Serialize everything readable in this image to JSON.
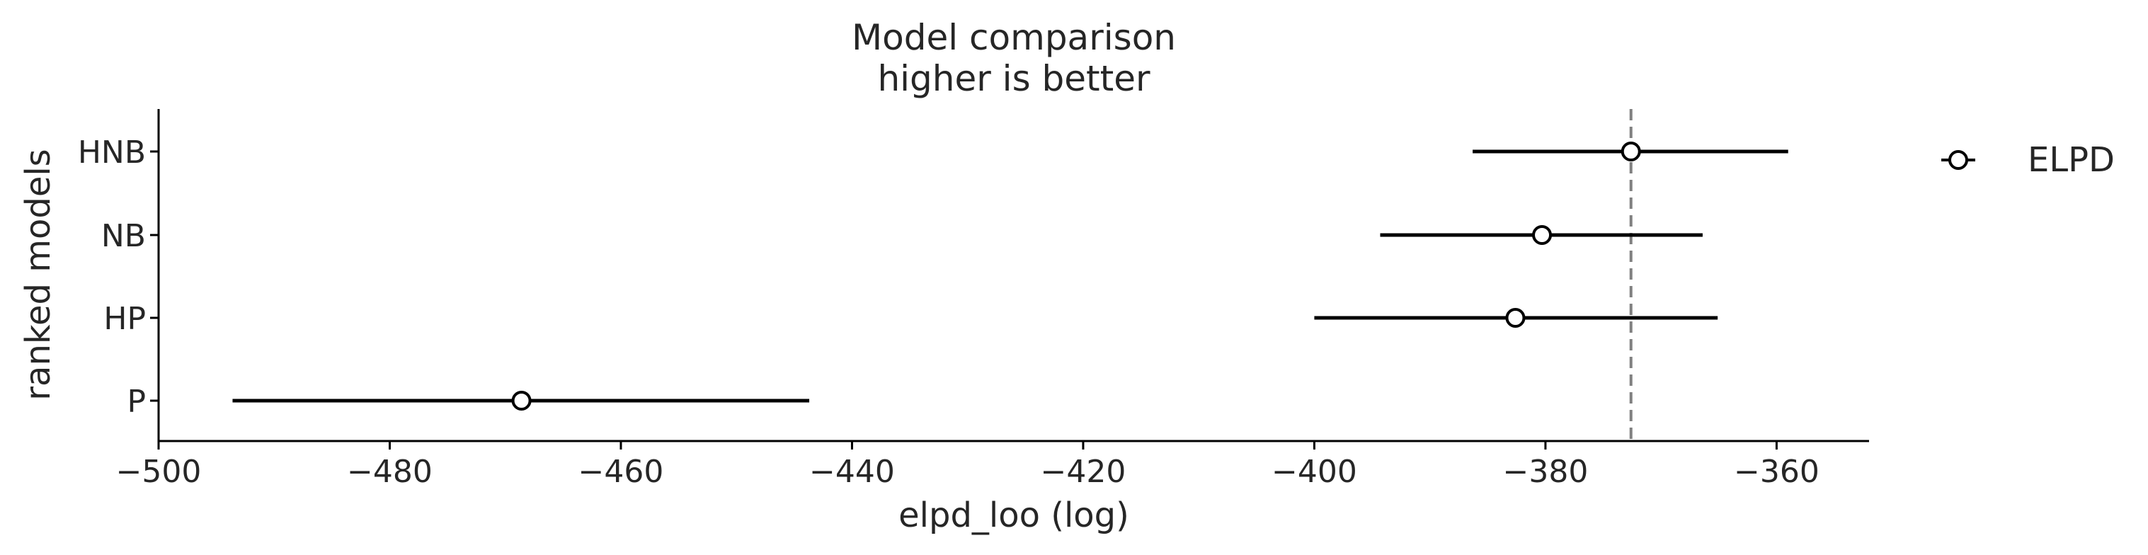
{
  "chart_data": {
    "type": "scatter",
    "title": "Model comparison",
    "subtitle": "higher is better",
    "xlabel": "elpd_loo (log)",
    "ylabel": "ranked models",
    "xlim": [
      -500,
      -352
    ],
    "xticks": [
      -500,
      -480,
      -460,
      -440,
      -420,
      -400,
      -380,
      -360
    ],
    "xtick_labels": [
      "−500",
      "−480",
      "−460",
      "−440",
      "−420",
      "−400",
      "−380",
      "−360"
    ],
    "categories": [
      "HNB",
      "NB",
      "HP",
      "P"
    ],
    "series": [
      {
        "name": "ELPD",
        "values": [
          -372.6,
          -380.3,
          -382.6,
          -468.6
        ],
        "error_low": [
          -386.3,
          -394.3,
          -400.0,
          -493.6
        ],
        "error_high": [
          -359.0,
          -366.4,
          -365.1,
          -443.7
        ]
      }
    ],
    "reference_line": {
      "x": -372.6,
      "style": "dashed",
      "color": "#808080"
    },
    "legend": {
      "placement": "right",
      "entries": [
        "ELPD"
      ]
    },
    "grid": false,
    "colors": {
      "line": "#000000",
      "marker_fill": "#ffffff",
      "marker_edge": "#000000",
      "text": "#262626"
    }
  }
}
